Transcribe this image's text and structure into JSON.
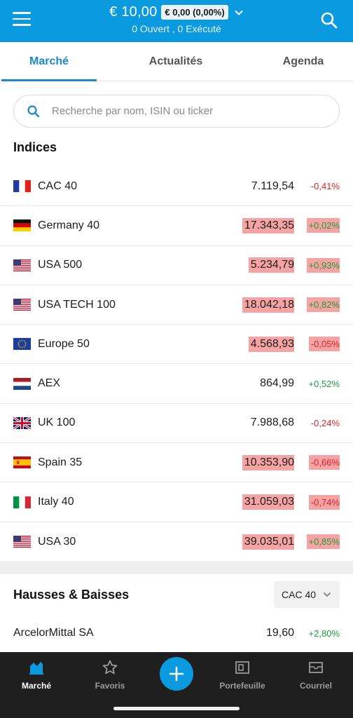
{
  "header": {
    "balance": "€ 10,00",
    "pnl": "€ 0,00 (0,00%)",
    "orders_status": "0 Ouvert , 0 Exécuté"
  },
  "tabs": [
    {
      "label": "Marché",
      "active": true
    },
    {
      "label": "Actualités",
      "active": false
    },
    {
      "label": "Agenda",
      "active": false
    }
  ],
  "search": {
    "placeholder": "Recherche par nom, ISIN ou ticker",
    "value": ""
  },
  "indices": {
    "title": "Indices",
    "items": [
      {
        "flag": "france-flag-icon",
        "name": "CAC 40",
        "price": "7.119,54",
        "change": "-0,41%",
        "direction": "neg",
        "highlighted": false
      },
      {
        "flag": "germany-flag-icon",
        "name": "Germany 40",
        "price": "17.343,35",
        "change": "+0,02%",
        "direction": "pos",
        "highlighted": true
      },
      {
        "flag": "usa-flag-icon",
        "name": "USA 500",
        "price": "5.234,79",
        "change": "+0,93%",
        "direction": "pos",
        "highlighted": true
      },
      {
        "flag": "usa-flag-icon",
        "name": "USA TECH 100",
        "price": "18.042,18",
        "change": "+0,82%",
        "direction": "pos",
        "highlighted": true
      },
      {
        "flag": "eu-flag-icon",
        "name": "Europe 50",
        "price": "4.568,93",
        "change": "-0,05%",
        "direction": "neg",
        "highlighted": true
      },
      {
        "flag": "netherlands-flag-icon",
        "name": "AEX",
        "price": "864,99",
        "change": "+0,52%",
        "direction": "pos",
        "highlighted": false
      },
      {
        "flag": "uk-flag-icon",
        "name": "UK 100",
        "price": "7.988,68",
        "change": "-0,24%",
        "direction": "neg",
        "highlighted": false
      },
      {
        "flag": "spain-flag-icon",
        "name": "Spain 35",
        "price": "10.353,90",
        "change": "-0,66%",
        "direction": "neg",
        "highlighted": true
      },
      {
        "flag": "italy-flag-icon",
        "name": "Italy 40",
        "price": "31.059,03",
        "change": "-0,74%",
        "direction": "neg",
        "highlighted": true
      },
      {
        "flag": "usa-flag-icon",
        "name": "USA 30",
        "price": "39.035,01",
        "change": "+0,85%",
        "direction": "pos",
        "highlighted": true
      }
    ]
  },
  "movers": {
    "title": "Hausses & Baisses",
    "selected_index": "CAC 40",
    "items": [
      {
        "name": "ArcelorMittal SA",
        "price": "19,60",
        "change": "+2,80%",
        "direction": "pos"
      }
    ]
  },
  "bottom_nav": [
    {
      "label": "Marché",
      "icon": "market-chart-icon",
      "active": true
    },
    {
      "label": "Favoris",
      "icon": "star-icon",
      "active": false
    },
    {
      "label": "Portefeuille",
      "icon": "portfolio-icon",
      "active": false
    },
    {
      "label": "Courriel",
      "icon": "mail-icon",
      "active": false
    }
  ],
  "colors": {
    "brand": "#0a9ae0",
    "tab_active": "#1a88c9",
    "positive": "#1e9b3a",
    "negative": "#d6262c",
    "highlight": "#f6a3a3"
  }
}
